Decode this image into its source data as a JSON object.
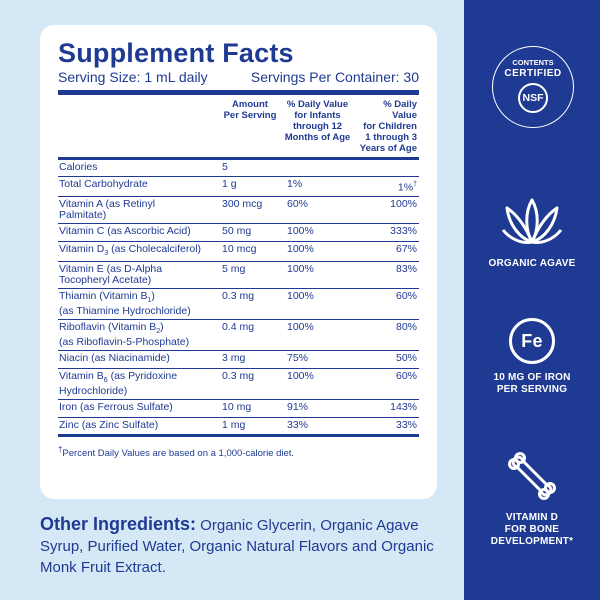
{
  "facts": {
    "title": "Supplement Facts",
    "serving_size": "Serving Size: 1 mL daily",
    "servings_per_container": "Servings Per Container: 30",
    "headers": {
      "amount": "Amount\nPer Serving",
      "dv_infants": "% Daily Value\nfor Infants\nthrough 12\nMonths of Age",
      "dv_children": "% Daily Value\nfor Children\n1 through 3\nYears of Age"
    },
    "rows": [
      {
        "name": "Calories",
        "amount": "5",
        "infants": "",
        "children": ""
      },
      {
        "name": "Total Carbohydrate",
        "amount": "1 g",
        "infants": "1%",
        "children": "1%",
        "mark": "†"
      },
      {
        "name": "Vitamin A (as Retinyl\nPalmitate)",
        "amount": "300 mcg",
        "infants": "60%",
        "children": "100%"
      },
      {
        "name": "Vitamin C (as Ascorbic Acid)",
        "amount": "50 mg",
        "infants": "100%",
        "children": "333%"
      },
      {
        "name": "Vitamin D",
        "sub": "3",
        "name_rest": " (as Cholecalciferol)",
        "amount": "10 mcg",
        "infants": "100%",
        "children": "67%"
      },
      {
        "name": "Vitamin E (as D-Alpha\nTocopheryl Acetate)",
        "amount": "5 mg",
        "infants": "100%",
        "children": "83%"
      },
      {
        "name": "Thiamin (Vitamin B",
        "sub": "1",
        "name_rest": ")\n(as Thiamine Hydrochloride)",
        "amount": "0.3 mg",
        "infants": "100%",
        "children": "60%"
      },
      {
        "name": "Riboflavin (Vitamin B",
        "sub": "2",
        "name_rest": ")\n(as Riboflavin-5-Phosphate)",
        "amount": "0.4 mg",
        "infants": "100%",
        "children": "80%"
      },
      {
        "name": "Niacin (as Niacinamide)",
        "amount": "3 mg",
        "infants": "75%",
        "children": "50%"
      },
      {
        "name": "Vitamin B",
        "sub": "6",
        "name_rest": " (as Pyridoxine\nHydrochloride)",
        "amount": "0.3 mg",
        "infants": "100%",
        "children": "60%"
      },
      {
        "name": "Iron (as Ferrous Sulfate)",
        "amount": "10 mg",
        "infants": "91%",
        "children": "143%"
      },
      {
        "name": "Zinc (as Zinc Sulfate)",
        "amount": "1 mg",
        "infants": "33%",
        "children": "33%"
      }
    ],
    "footnote_mark": "†",
    "footnote": "Percent Daily Values are based on a 1,000-calorie diet."
  },
  "other_ingredients": {
    "heading": "Other Ingredients:",
    "text": " Organic Glycerin, Organic Agave Syrup, Purified Water, Organic Natural Flavors and Organic Monk Fruit Extract."
  },
  "panel": {
    "badge_line1": "CONTENTS",
    "badge_line2": "CERTIFIED",
    "badge_logo": "NSF",
    "agave_label": "ORGANIC AGAVE",
    "iron_symbol": "Fe",
    "iron_label": "10 MG OF IRON\nPER SERVING",
    "vitd_label": "VITAMIN D\nFOR BONE\nDEVELOPMENT*",
    "colors": {
      "navy": "#1f3a93",
      "background": "#d5e8f5",
      "card": "#ffffff"
    },
    "icons": [
      "nsf-certified-badge-icon",
      "agave-plant-icon",
      "iron-fe-icon",
      "bone-icon"
    ]
  }
}
